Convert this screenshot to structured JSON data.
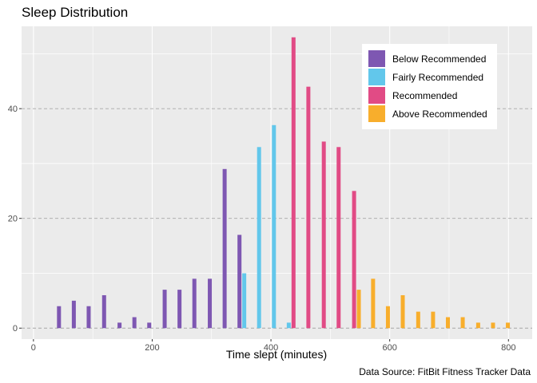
{
  "chart_data": {
    "type": "bar",
    "title": "Sleep Distribution",
    "xlabel": "Time slept (minutes)",
    "ylabel": "",
    "caption": "Data Source: FitBit Fitness Tracker Data",
    "xlim": [
      -20,
      840
    ],
    "ylim": [
      -2,
      55
    ],
    "xticks": [
      0,
      200,
      400,
      600,
      800
    ],
    "yticks": [
      0,
      20,
      40
    ],
    "grid": true,
    "legend_position": "top-right",
    "series": [
      {
        "name": "Below Recommended",
        "color": "#7E57B2",
        "x": [
          43,
          68,
          93,
          119,
          145,
          170,
          195,
          221,
          246,
          271,
          297,
          322,
          347
        ],
        "values": [
          4,
          5,
          4,
          6,
          1,
          2,
          1,
          7,
          7,
          9,
          9,
          29,
          17
        ]
      },
      {
        "name": "Fairly Recommended",
        "color": "#62C7EB",
        "x": [
          355,
          380,
          405,
          430
        ],
        "values": [
          10,
          33,
          37,
          1
        ]
      },
      {
        "name": "Recommended",
        "color": "#E14B85",
        "x": [
          438,
          463,
          489,
          514,
          540
        ],
        "values": [
          53,
          44,
          34,
          33,
          25
        ]
      },
      {
        "name": "Above Recommended",
        "color": "#F8AE2C",
        "x": [
          548,
          572,
          597,
          622,
          648,
          673,
          698,
          723,
          749,
          774,
          799
        ],
        "values": [
          7,
          9,
          4,
          6,
          3,
          3,
          2,
          2,
          1,
          1,
          1
        ]
      }
    ]
  }
}
